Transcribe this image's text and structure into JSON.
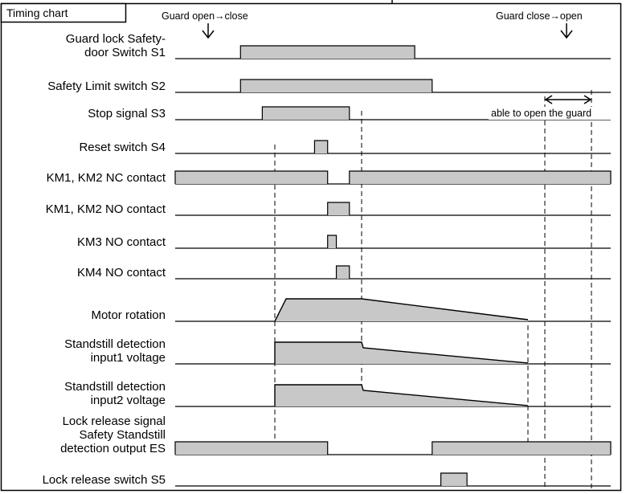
{
  "title": "Timing chart",
  "annotations": {
    "open_to_close": "Guard open→close",
    "close_to_open": "Guard close→open",
    "able_to_open": "able to open the guard"
  },
  "signals": [
    {
      "id": "s1",
      "label_lines": [
        "Guard lock Safety-",
        "door Switch S1"
      ],
      "shape": "steps",
      "segments": [
        [
          0.15,
          0.55,
          1.0
        ],
        [
          0.55,
          1.0,
          0.0
        ]
      ]
    },
    {
      "id": "s2",
      "label_lines": [
        "Safety Limit switch S2"
      ],
      "shape": "steps",
      "segments": [
        [
          0.15,
          0.59,
          1.0
        ]
      ]
    },
    {
      "id": "s3",
      "label_lines": [
        "Stop signal S3"
      ],
      "shape": "steps",
      "segments": [
        [
          0.2,
          0.4,
          1.0
        ]
      ]
    },
    {
      "id": "s4",
      "label_lines": [
        "Reset switch S4"
      ],
      "shape": "steps",
      "segments": [
        [
          0.32,
          0.35,
          1.0
        ]
      ]
    },
    {
      "id": "km12nc",
      "label_lines": [
        "KM1, KM2 NC contact"
      ],
      "shape": "steps",
      "segments": [
        [
          0.0,
          0.35,
          1.0
        ],
        [
          0.4,
          1.0,
          1.0
        ]
      ]
    },
    {
      "id": "km12no",
      "label_lines": [
        "KM1, KM2 NO contact"
      ],
      "shape": "steps",
      "segments": [
        [
          0.35,
          0.4,
          1.0
        ]
      ]
    },
    {
      "id": "km3",
      "label_lines": [
        "KM3 NO contact"
      ],
      "shape": "steps",
      "segments": [
        [
          0.35,
          0.37,
          1.0
        ]
      ]
    },
    {
      "id": "km4",
      "label_lines": [
        "KM4 NO contact"
      ],
      "shape": "steps",
      "segments": [
        [
          0.37,
          0.4,
          1.0
        ]
      ]
    },
    {
      "id": "motor",
      "label_lines": [
        "Motor rotation"
      ],
      "shape": "motor"
    },
    {
      "id": "sd1",
      "label_lines": [
        "Standstill detection",
        "input1 voltage"
      ],
      "shape": "decay"
    },
    {
      "id": "sd2",
      "label_lines": [
        "Standstill detection",
        "input2 voltage"
      ],
      "shape": "decay"
    },
    {
      "id": "es",
      "label_lines": [
        "Lock release signal",
        "Safety Standstill",
        "detection output ES"
      ],
      "shape": "steps",
      "segments": [
        [
          0.0,
          0.35,
          1.0
        ],
        [
          0.59,
          1.0,
          1.0
        ]
      ]
    },
    {
      "id": "s5",
      "label_lines": [
        "Lock release switch S5"
      ],
      "shape": "steps",
      "segments": [
        [
          0.61,
          0.67,
          1.0
        ]
      ]
    }
  ],
  "colors": {
    "fill": "#c8c8c8",
    "line": "#000000",
    "background": "#ffffff"
  }
}
